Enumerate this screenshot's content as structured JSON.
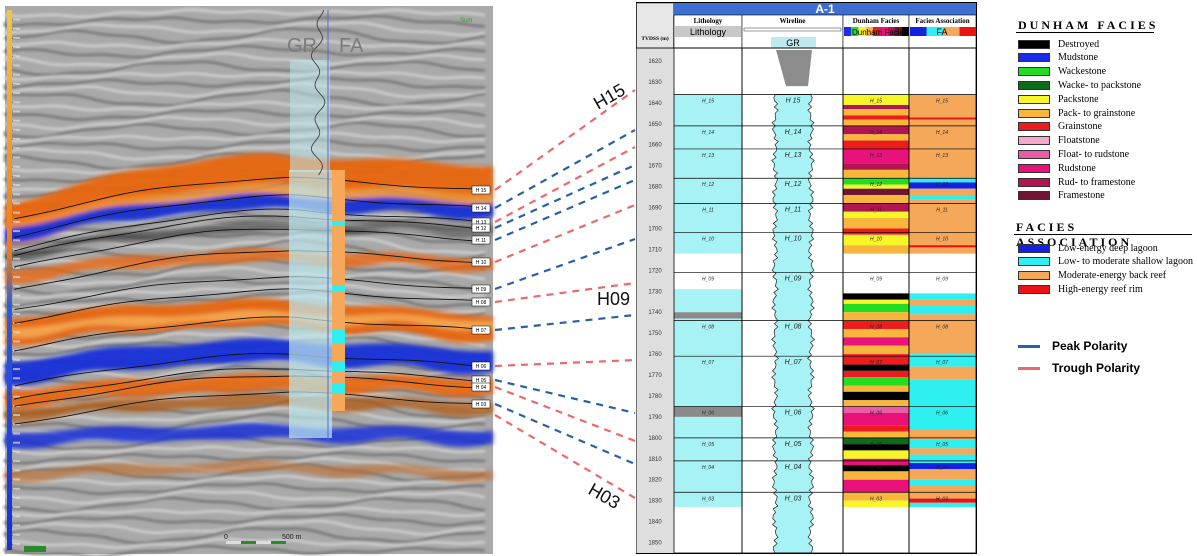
{
  "seismic": {
    "gr_label": "GR",
    "fa_label": "FA",
    "corner_label": "Sum",
    "scale_label_left": "0",
    "scale_label_right": "500 m",
    "horizon_labels": [
      "H 15",
      "H 14",
      "H 13",
      "H 12",
      "H 11",
      "H 10",
      "H 09",
      "H 08",
      "H 07",
      "H 06",
      "H 05",
      "H 04",
      "H 03"
    ],
    "colors": {
      "orange": "#e8660f",
      "blue": "#1530d8",
      "gray": "#8a8a8a",
      "well": "#bfe9ef"
    }
  },
  "callouts": {
    "h15": "H15",
    "h09": "H09",
    "h03": "H03"
  },
  "well_log": {
    "well_name": "A-1",
    "columns": [
      "Lithology",
      "Wireline",
      "Dunham Facies",
      "Facies Association"
    ],
    "subheaders": [
      "Lithology",
      "GR",
      "Dunham Facies",
      "FA"
    ],
    "depth_header": "TVDSS (m)",
    "depths": [
      "1620",
      "1630",
      "1640",
      "1650",
      "1660",
      "1670",
      "1680",
      "1690",
      "1700",
      "1710",
      "1720",
      "1730",
      "1740",
      "1750",
      "1760",
      "1770",
      "1780",
      "1790",
      "1800",
      "1810",
      "1820",
      "1830",
      "1840",
      "1850"
    ],
    "horizons": [
      {
        "name": "H_15",
        "label": "H 15"
      },
      {
        "name": "H_14",
        "label": "H_14"
      },
      {
        "name": "H_13",
        "label": "H_13"
      },
      {
        "name": "H_12",
        "label": "H_12"
      },
      {
        "name": "H_11",
        "label": "H_11"
      },
      {
        "name": "H_10",
        "label": "H_10"
      },
      {
        "name": "H_09",
        "label": "H_09"
      },
      {
        "name": "H_08",
        "label": "H_08"
      },
      {
        "name": "H_07",
        "label": "H_07"
      },
      {
        "name": "H_06",
        "label": "H_06"
      },
      {
        "name": "H_05",
        "label": "H_05"
      },
      {
        "name": "H_04",
        "label": "H_04"
      },
      {
        "name": "H_03",
        "label": "H_03"
      }
    ]
  },
  "dunham_legend": {
    "title": "DUNHAM FACIES",
    "items": [
      {
        "label": "Destroyed",
        "color": "#000000"
      },
      {
        "label": "Mudstone",
        "color": "#1a2ee8"
      },
      {
        "label": "Wackestone",
        "color": "#22dd22"
      },
      {
        "label": "Wacke- to packstone",
        "color": "#0d6b18"
      },
      {
        "label": "Packstone",
        "color": "#f7f728"
      },
      {
        "label": "Pack- to grainstone",
        "color": "#f9b63d"
      },
      {
        "label": "Grainstone",
        "color": "#ee1c1c"
      },
      {
        "label": "Floatstone",
        "color": "#f6a8cc"
      },
      {
        "label": "Float- to rudstone",
        "color": "#ea5ca6"
      },
      {
        "label": "Rudstone",
        "color": "#e8127a"
      },
      {
        "label": "Rud- to framestone",
        "color": "#b01650"
      },
      {
        "label": "Framestone",
        "color": "#6e1330"
      }
    ]
  },
  "fa_legend": {
    "title": "FACIES ASSOCIATION",
    "items": [
      {
        "label": "Low-energy deep lagoon",
        "color": "#1222e0"
      },
      {
        "label": "Low- to moderate shallow lagoon",
        "color": "#2ef0f0"
      },
      {
        "label": "Moderate-energy back reef",
        "color": "#f5a85a"
      },
      {
        "label": "High-energy reef rim",
        "color": "#ee1111"
      }
    ]
  },
  "polarity_legend": {
    "items": [
      {
        "label": "Peak Polarity",
        "color": "#2461a8"
      },
      {
        "label": "Trough Polarity",
        "color": "#e86a6a"
      }
    ]
  }
}
